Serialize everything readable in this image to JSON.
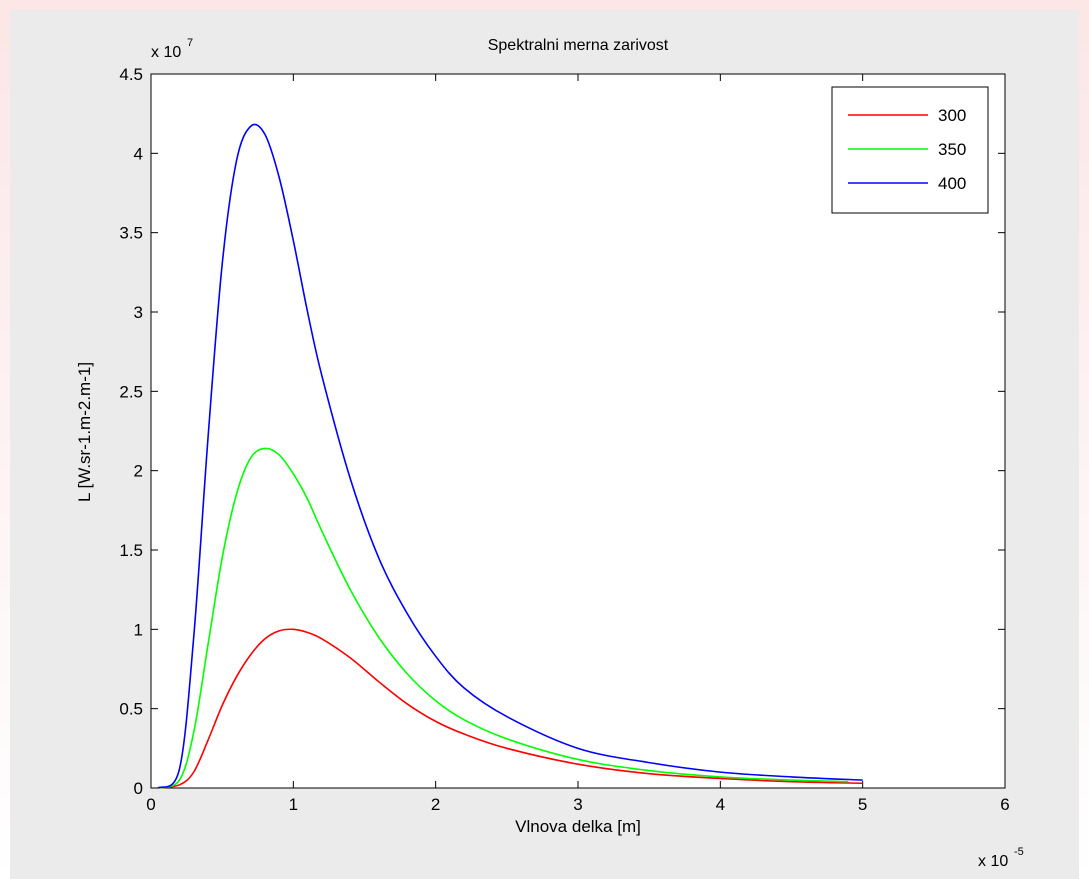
{
  "chart_data": {
    "type": "line",
    "title": "Spektralni merna zarivost",
    "xlabel": "Vlnova delka [m]",
    "ylabel": "L [W.sr-1.m-2.m-1]",
    "x_multiplier": {
      "base": "x 10",
      "exp": "-5"
    },
    "y_multiplier": {
      "base": "x 10",
      "exp": "7"
    },
    "xlim": [
      0,
      6
    ],
    "ylim": [
      0,
      4.5
    ],
    "x_ticks": [
      0,
      1,
      2,
      3,
      4,
      5,
      6
    ],
    "y_ticks": [
      0,
      0.5,
      1,
      1.5,
      2,
      2.5,
      3,
      3.5,
      4,
      4.5
    ],
    "x_tick_labels": [
      "0",
      "1",
      "2",
      "3",
      "4",
      "5",
      "6"
    ],
    "y_tick_labels": [
      "0",
      "0.5",
      "1",
      "1.5",
      "2",
      "2.5",
      "3",
      "3.5",
      "4",
      "4.5"
    ],
    "grid": false,
    "legend_position": "top-right",
    "series": [
      {
        "name": "300",
        "color": "#ff0000",
        "x": [
          0.05,
          0.2,
          0.3,
          0.4,
          0.5,
          0.6,
          0.7,
          0.8,
          0.9,
          1.0,
          1.1,
          1.2,
          1.4,
          1.6,
          1.8,
          2.0,
          2.2,
          2.5,
          3.0,
          3.5,
          4.0,
          4.5,
          5.0
        ],
        "y": [
          0,
          0.02,
          0.1,
          0.3,
          0.52,
          0.7,
          0.84,
          0.94,
          0.99,
          1.0,
          0.98,
          0.94,
          0.82,
          0.67,
          0.53,
          0.42,
          0.34,
          0.25,
          0.15,
          0.09,
          0.06,
          0.04,
          0.03
        ]
      },
      {
        "name": "350",
        "color": "#00ff00",
        "x": [
          0.05,
          0.2,
          0.3,
          0.4,
          0.5,
          0.6,
          0.7,
          0.8,
          0.9,
          1.0,
          1.1,
          1.2,
          1.4,
          1.6,
          1.8,
          2.0,
          2.2,
          2.5,
          3.0,
          3.5,
          4.0,
          4.5,
          4.9
        ],
        "y": [
          0,
          0.05,
          0.35,
          0.9,
          1.45,
          1.85,
          2.08,
          2.14,
          2.1,
          1.98,
          1.82,
          1.62,
          1.25,
          0.95,
          0.72,
          0.55,
          0.43,
          0.31,
          0.18,
          0.11,
          0.07,
          0.05,
          0.04
        ]
      },
      {
        "name": "400",
        "color": "#0000ff",
        "x": [
          0.05,
          0.2,
          0.3,
          0.4,
          0.5,
          0.6,
          0.7,
          0.8,
          0.9,
          1.0,
          1.1,
          1.2,
          1.4,
          1.6,
          1.8,
          2.0,
          2.2,
          2.5,
          3.0,
          3.5,
          4.0,
          4.5,
          5.0
        ],
        "y": [
          0,
          0.12,
          0.95,
          2.2,
          3.3,
          3.95,
          4.17,
          4.12,
          3.85,
          3.45,
          3.0,
          2.6,
          1.95,
          1.45,
          1.1,
          0.83,
          0.63,
          0.45,
          0.25,
          0.16,
          0.1,
          0.07,
          0.05
        ]
      }
    ]
  }
}
